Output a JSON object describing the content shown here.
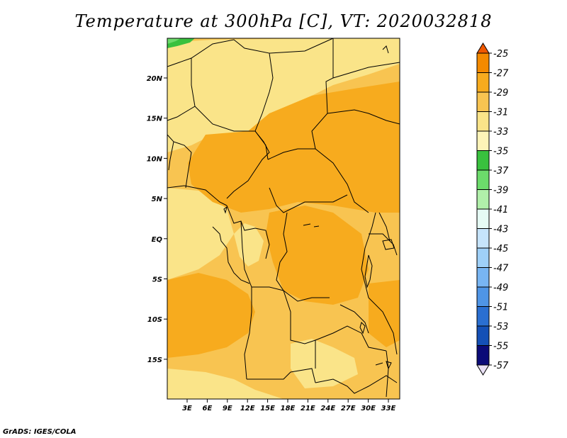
{
  "title": "Temperature at 300hPa [C], VT: 2020032818",
  "credit": "GrADS: IGES/COLA",
  "map": {
    "lon_labels": [
      "3E",
      "6E",
      "9E",
      "12E",
      "15E",
      "18E",
      "21E",
      "24E",
      "27E",
      "30E",
      "33E"
    ],
    "lat_labels": [
      "20N",
      "15N",
      "10N",
      "5N",
      "EQ",
      "5S",
      "10S",
      "15S"
    ]
  },
  "colorbar": {
    "labels": [
      "-25",
      "-27",
      "-29",
      "-31",
      "-33",
      "-35",
      "-37",
      "-39",
      "-41",
      "-43",
      "-45",
      "-47",
      "-49",
      "-51",
      "-53",
      "-55",
      "-57"
    ],
    "colors": [
      "#f05800",
      "#f48a00",
      "#f7ab1e",
      "#f8c451",
      "#fae489",
      "#fdf4b8",
      "#39c13e",
      "#6cdb6b",
      "#b1f0aa",
      "#e6fbf5",
      "#c6e4fb",
      "#9fd0f8",
      "#78b5f3",
      "#4f95e6",
      "#2a6fd1",
      "#1450b6",
      "#0b0b78",
      "#e9e1f5"
    ]
  },
  "colors": {
    "field_warm": "#f8c451",
    "field_mid": "#fae489",
    "field_cool": "#fdf4b8",
    "field_hot": "#f7ab1e",
    "green_patch": "#39c13e",
    "border": "#000000"
  }
}
